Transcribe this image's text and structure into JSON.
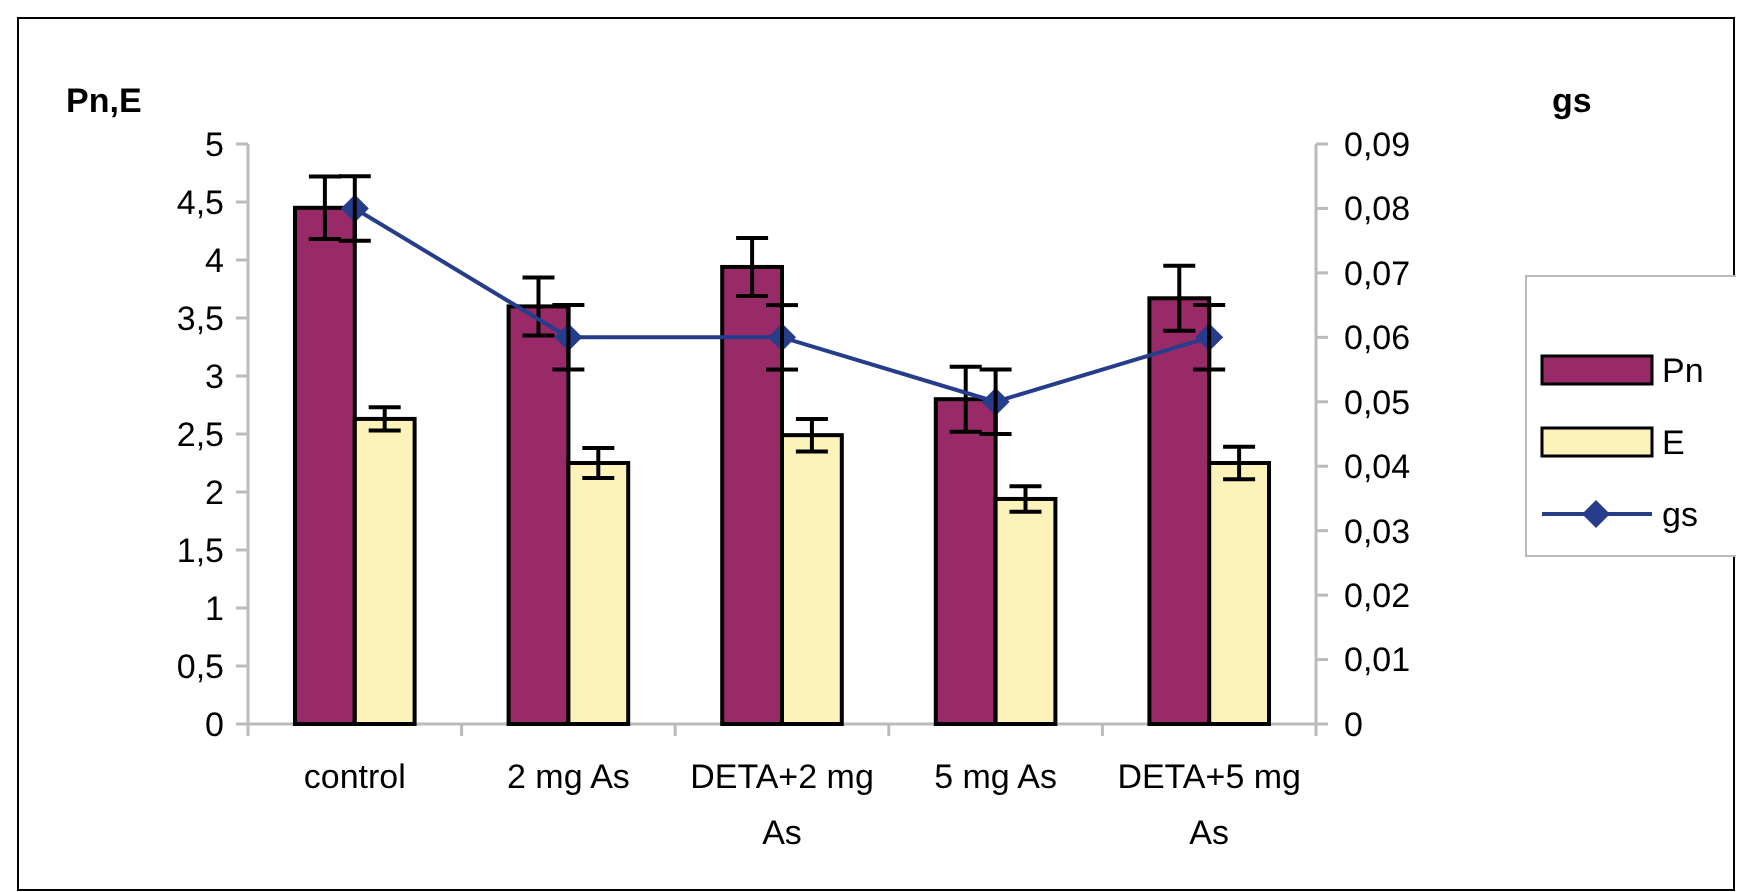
{
  "chart_data": {
    "type": "bar",
    "ylabel": "Pn,E",
    "y2label": "gs",
    "categories": [
      "control",
      "2 mg As",
      "DETA+2 mg As",
      "5 mg As",
      "DETA+5 mg As"
    ],
    "series": [
      {
        "name": "Pn",
        "color": "#982a68",
        "values": [
          4.45,
          3.6,
          3.94,
          2.8,
          3.67
        ],
        "errors": [
          0.27,
          0.25,
          0.25,
          0.28,
          0.28
        ]
      },
      {
        "name": "E",
        "color": "#fbf3b9",
        "values": [
          2.63,
          2.25,
          2.49,
          1.94,
          2.25
        ],
        "errors": [
          0.1,
          0.13,
          0.14,
          0.11,
          0.14
        ]
      },
      {
        "name": "gs",
        "type": "line",
        "axis": "y2",
        "color": "#263d8c",
        "marker": "diamond",
        "values": [
          0.08,
          0.06,
          0.06,
          0.05,
          0.06
        ],
        "errors": [
          0.005,
          0.005,
          0.005,
          0.005,
          0.005
        ]
      }
    ],
    "ylim": [
      0,
      5
    ],
    "yticks": [
      0,
      {
        "value": 0.5,
        "label": "0,5"
      },
      1,
      {
        "value": 1.5,
        "label": "1,5"
      },
      2,
      {
        "value": 2.5,
        "label": "2,5"
      },
      3,
      {
        "value": 3.5,
        "label": "3,5"
      },
      4,
      {
        "value": 4.5,
        "label": "4,5"
      },
      5
    ],
    "y2lim": [
      0,
      0.09
    ],
    "y2ticks": [
      {
        "value": 0,
        "label": "0"
      },
      {
        "value": 0.01,
        "label": "0,01"
      },
      {
        "value": 0.02,
        "label": "0,02"
      },
      {
        "value": 0.03,
        "label": "0,03"
      },
      {
        "value": 0.04,
        "label": "0,04"
      },
      {
        "value": 0.05,
        "label": "0,05"
      },
      {
        "value": 0.06,
        "label": "0,06"
      },
      {
        "value": 0.07,
        "label": "0,07"
      },
      {
        "value": 0.08,
        "label": "0,08"
      },
      {
        "value": 0.09,
        "label": "0,09"
      }
    ],
    "legend": "right",
    "grid": false
  }
}
